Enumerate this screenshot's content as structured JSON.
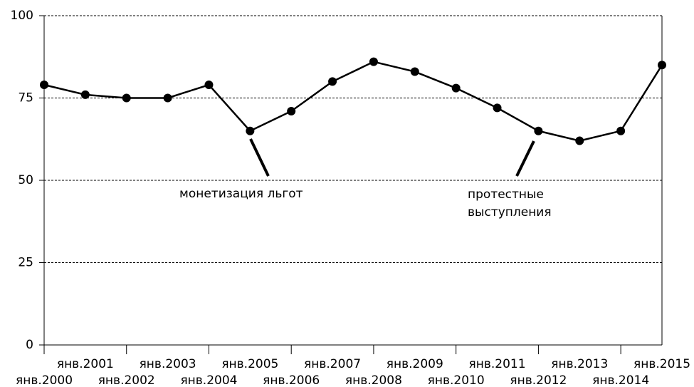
{
  "chart_data": {
    "type": "line",
    "categories": [
      "янв.2000",
      "янв.2001",
      "янв.2002",
      "янв.2003",
      "янв.2004",
      "янв.2005",
      "янв.2006",
      "янв.2007",
      "янв.2008",
      "янв.2009",
      "янв.2010",
      "янв.2011",
      "янв.2012",
      "янв.2013",
      "янв.2014",
      "янв.2015"
    ],
    "series": [
      {
        "color": "#000000",
        "values": [
          79,
          76,
          75,
          75,
          79,
          65,
          71,
          80,
          86,
          83,
          78,
          72,
          65,
          62,
          65,
          85
        ]
      }
    ],
    "ylim": [
      0,
      100
    ],
    "yticks": [
      0,
      25,
      50,
      75,
      100
    ],
    "grid": true,
    "annotations": [
      [
        "монетизация льгот"
      ],
      [
        "протестные",
        "выступления"
      ]
    ]
  }
}
